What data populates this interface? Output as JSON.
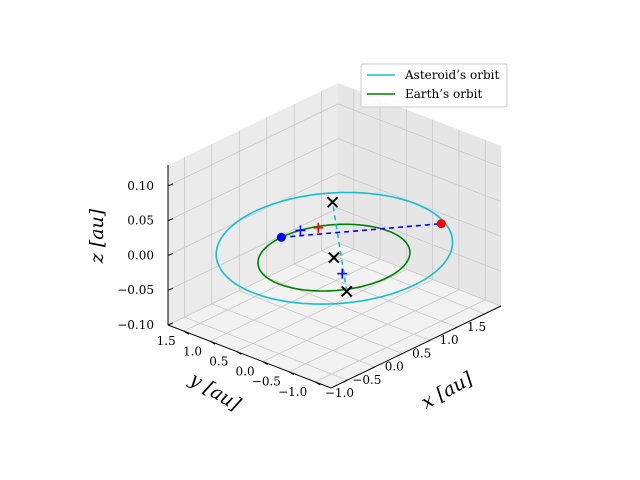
{
  "chart_data": {
    "type": "line3d",
    "title": "",
    "xlabel": "x [au]",
    "ylabel": "y [au]",
    "zlabel": "z [au]",
    "xlim": [
      -1.3,
      1.8
    ],
    "ylim": [
      -1.3,
      1.8
    ],
    "zlim": [
      -0.1,
      0.13
    ],
    "xticks": [
      -1.0,
      -0.5,
      0.0,
      0.5,
      1.0,
      1.5
    ],
    "yticks": [
      -1.0,
      -0.5,
      0.0,
      0.5,
      1.0,
      1.5
    ],
    "zticks": [
      -0.1,
      -0.05,
      0.0,
      0.05,
      0.1
    ],
    "xtick_labels": [
      "−1.0",
      "−0.5",
      "0.0",
      "0.5",
      "1.0",
      "1.5"
    ],
    "ytick_labels": [
      "−1.0",
      "−0.5",
      "0.0",
      "0.5",
      "1.0",
      "1.5"
    ],
    "ztick_labels": [
      "−0.10",
      "−0.05",
      "0.00",
      "0.05",
      "0.10"
    ],
    "grid": true,
    "legend": "top-right",
    "series": [
      {
        "name": "Asteroid’s orbit",
        "kind": "ellipse",
        "color": "#17becf",
        "center": [
          0.2,
          0.2,
          0.0
        ],
        "u": [
          1.1,
          -1.1,
          0.0
        ],
        "v": [
          -0.6,
          -0.6,
          0.12
        ]
      },
      {
        "name": "Earth’s orbit",
        "kind": "circle",
        "color": "#008000",
        "center": [
          0.0,
          0.0,
          0.0
        ],
        "radius": 1.0
      }
    ],
    "segments": [
      {
        "color": "#0000ff",
        "style": "dashed",
        "from": [
          0.0,
          1.0,
          0.0
        ],
        "to": [
          1.0,
          -1.0,
          0.04
        ]
      },
      {
        "color": "#17becf",
        "style": "dashed",
        "from": [
          1.0,
          0.8,
          -0.11
        ],
        "to": [
          -0.6,
          -0.6,
          0.12
        ]
      }
    ],
    "points": [
      {
        "marker": "dot",
        "color": "#ff0000",
        "xyz": [
          1.0,
          -1.0,
          0.04
        ]
      },
      {
        "marker": "dot",
        "color": "#0000ff",
        "xyz": [
          0.0,
          1.0,
          0.0
        ]
      },
      {
        "marker": "x",
        "color": "#000000",
        "xyz": [
          -0.6,
          -0.6,
          0.12
        ]
      },
      {
        "marker": "x",
        "color": "#000000",
        "xyz": [
          0.0,
          0.0,
          0.0
        ]
      },
      {
        "marker": "x",
        "color": "#000000",
        "xyz": [
          1.0,
          0.8,
          -0.11
        ]
      },
      {
        "marker": "plus",
        "color": "#0000ff",
        "xyz": [
          0.3,
          0.95,
          0.0
        ]
      },
      {
        "marker": "plus",
        "color": "#ff0000",
        "xyz": [
          0.5,
          0.82,
          0.0
        ]
      },
      {
        "marker": "plus",
        "color": "#0000ff",
        "xyz": [
          0.9,
          0.78,
          -0.08
        ]
      }
    ]
  }
}
